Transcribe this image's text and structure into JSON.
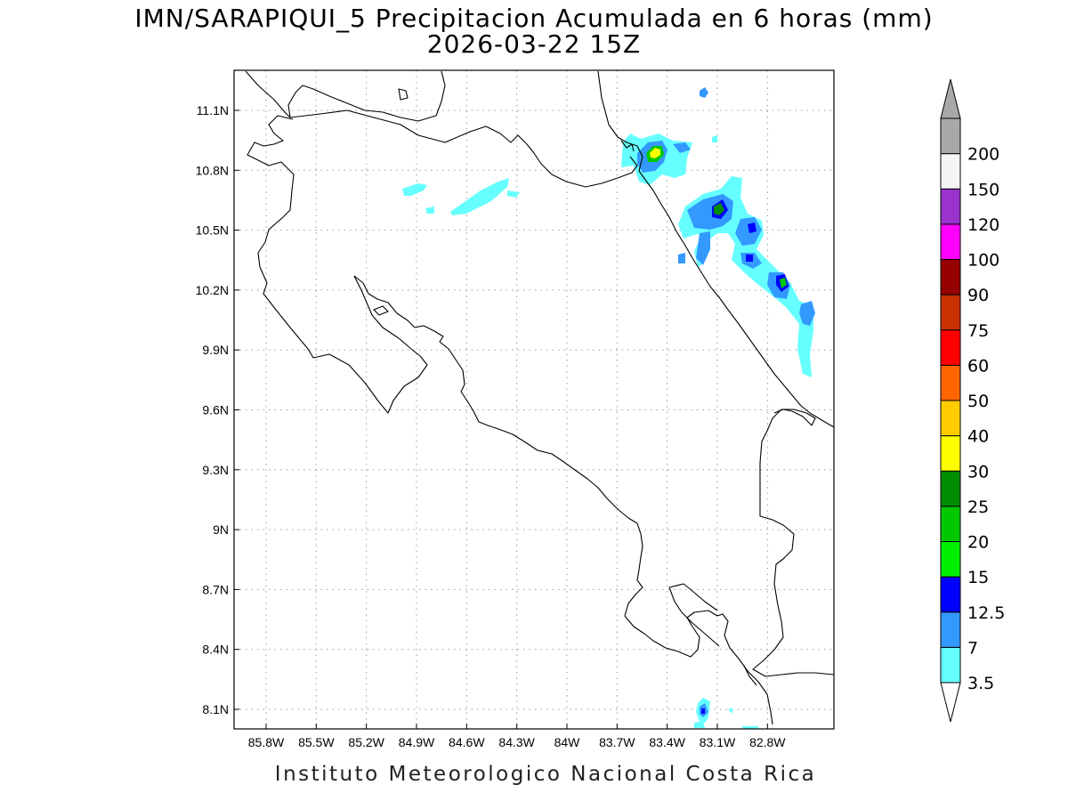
{
  "map": {
    "title": "IMN/SARAPIQUI_5 Precipitacion Acumulada en 6 horas (mm)",
    "subtitle": "2026-03-22 15Z",
    "footer": "Instituto Meteorologico Nacional Costa Rica",
    "variable": "6-hour accumulated precipitation",
    "units": "mm",
    "lon_range": [
      -86.0,
      -82.5
    ],
    "lat_range": [
      8.0,
      11.2
    ],
    "lon_ticks": [
      "85.8W",
      "85.5W",
      "85.2W",
      "84.9W",
      "84.6W",
      "84.3W",
      "84W",
      "83.7W",
      "83.4W",
      "83.1W",
      "82.8W"
    ],
    "lat_ticks": [
      "11.1N",
      "10.8N",
      "10.5N",
      "10.2N",
      "9.9N",
      "9.6N",
      "9.3N",
      "9N",
      "8.7N",
      "8.4N",
      "8.1N"
    ],
    "gridlines": true,
    "colorbar": {
      "orientation": "vertical",
      "placement": "right",
      "levels": [
        "3.5",
        "7",
        "12.5",
        "15",
        "20",
        "25",
        "30",
        "40",
        "50",
        "60",
        "75",
        "90",
        "100",
        "120",
        "150",
        "200"
      ],
      "colors": [
        "#66ffff",
        "#3399ff",
        "#0000ff",
        "#00ee00",
        "#00c800",
        "#008c00",
        "#ffff00",
        "#ffcc00",
        "#ff6600",
        "#ff0000",
        "#c83200",
        "#960000",
        "#ff00ff",
        "#9933cc",
        "#f5f5f5",
        "#a8a8a8"
      ],
      "arrow_low_color": "#ffffff",
      "arrow_high_color": "#a8a8a8"
    }
  }
}
